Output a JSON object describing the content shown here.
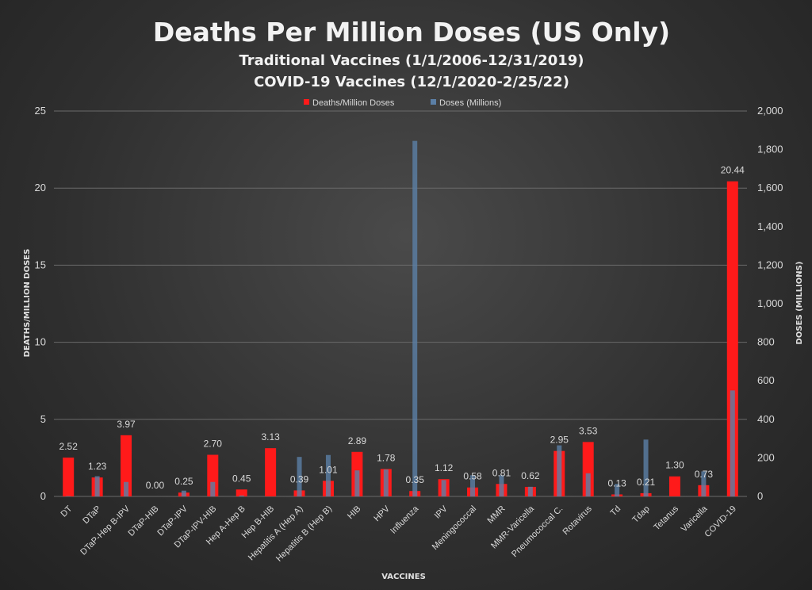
{
  "chart_data": {
    "type": "bar",
    "title": "Deaths Per Million Doses (US Only)",
    "subtitle_1": "Traditional Vaccines (1/1/2006-12/31/2019)",
    "subtitle_2": "COVID-19 Vaccines (12/1/2020-2/25/22)",
    "xlabel": "VACCINES",
    "ylabel": "DEATHS/MILLION DOSES",
    "y2label": "DOSES (MILLIONS)",
    "ylim": [
      0,
      25
    ],
    "y2lim": [
      0,
      2000
    ],
    "y_ticks": [
      "0",
      "5",
      "10",
      "15",
      "20",
      "25"
    ],
    "y2_ticks": [
      "0",
      "200",
      "400",
      "600",
      "800",
      "1,000",
      "1,200",
      "1,400",
      "1,600",
      "1,800",
      "2,000"
    ],
    "grid": true,
    "legend_position": "top",
    "categories": [
      "DT",
      "DTaP",
      "DTaP-Hep B-IPV",
      "DTaP-HIB",
      "DTaP-IPV",
      "DTaP-IPV-HIB",
      "Hep A-Hep B",
      "Hep B-HIB",
      "Hepatitis A (Hep A)",
      "Hepatitis B (Hep B)",
      "HIB",
      "HPV",
      "Influenza",
      "IPV",
      "Meningococcal",
      "MMR",
      "MMR-Varicella",
      "Pneumococcal C.",
      "Rotavirus",
      "Td",
      "Tdap",
      "Tetanus",
      "Varicella",
      "COVID-19"
    ],
    "series": [
      {
        "name": "Deaths/Million Doses",
        "color": "#ff1a1a",
        "axis": "left",
        "values": [
          2.52,
          1.23,
          3.97,
          0.0,
          0.25,
          2.7,
          0.45,
          3.13,
          0.39,
          1.01,
          2.89,
          1.78,
          0.35,
          1.12,
          0.58,
          0.81,
          0.62,
          2.95,
          3.53,
          0.13,
          0.21,
          1.3,
          0.73,
          20.44
        ],
        "labels": [
          "2.52",
          "1.23",
          "3.97",
          "0.00",
          "0.25",
          "2.70",
          "0.45",
          "3.13",
          "0.39",
          "1.01",
          "2.89",
          "1.78",
          "0.35",
          "1.12",
          "0.58",
          "0.81",
          "0.62",
          "2.95",
          "3.53",
          "0.13",
          "0.21",
          "1.30",
          "0.73",
          "20.44"
        ]
      },
      {
        "name": "Doses (Millions)",
        "color": "#5b7fa6",
        "axis": "right",
        "values": [
          2,
          105,
          75,
          0,
          30,
          75,
          5,
          0,
          205,
          215,
          135,
          140,
          1845,
          85,
          110,
          110,
          50,
          265,
          120,
          65,
          295,
          0,
          130,
          550
        ]
      }
    ]
  }
}
